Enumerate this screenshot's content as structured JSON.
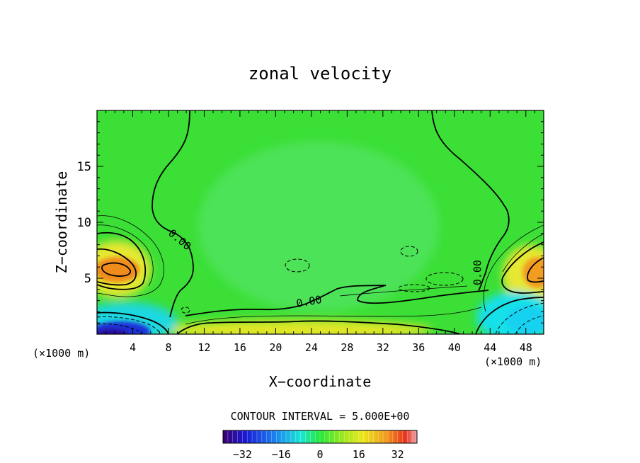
{
  "chart_data": {
    "type": "heatmap",
    "title": "zonal velocity",
    "xlabel": "X−coordinate",
    "ylabel": "Z−coordinate",
    "x_unit": "(×1000 m)",
    "x_unit_right": "(×1000 m)",
    "xlim": [
      0,
      50
    ],
    "ylim": [
      0,
      20
    ],
    "x_ticks": [
      4,
      8,
      12,
      16,
      20,
      24,
      28,
      32,
      36,
      40,
      44,
      48
    ],
    "x_tick_labels": [
      "4",
      "8",
      "12",
      "16",
      "20",
      "24",
      "28",
      "32",
      "36",
      "40",
      "44",
      "48"
    ],
    "y_ticks": [
      5,
      10,
      15
    ],
    "y_tick_labels": [
      "5",
      "10",
      "15"
    ],
    "contour_interval_text": "CONTOUR INTERVAL = 5.000E+00",
    "contour_interval": 5.0,
    "contour_labels": [
      {
        "text": "0.00",
        "x": 9,
        "z": 8.2
      },
      {
        "text": "0.00",
        "x": 23.8,
        "z": 2.6
      },
      {
        "text": "0.00",
        "x": 43,
        "z": 5.5
      }
    ],
    "colorbar": {
      "range": [
        -40,
        40
      ],
      "ticks": [
        -32,
        -16,
        0,
        16,
        32
      ],
      "tick_labels": [
        "−32",
        "−16",
        "0",
        "16",
        "32"
      ]
    },
    "features": [
      {
        "type": "positive max",
        "x": 2.5,
        "z": 5.8,
        "value": 22
      },
      {
        "type": "positive max",
        "x": 49,
        "z": 5.8,
        "value": 20
      },
      {
        "type": "negative min",
        "x": 2.5,
        "z": 0.5,
        "value": -32
      },
      {
        "type": "negative min",
        "x": 48,
        "z": 1.8,
        "value": -15
      },
      {
        "type": "positive band",
        "x": 22,
        "z": 0.5,
        "value": 8
      }
    ]
  }
}
